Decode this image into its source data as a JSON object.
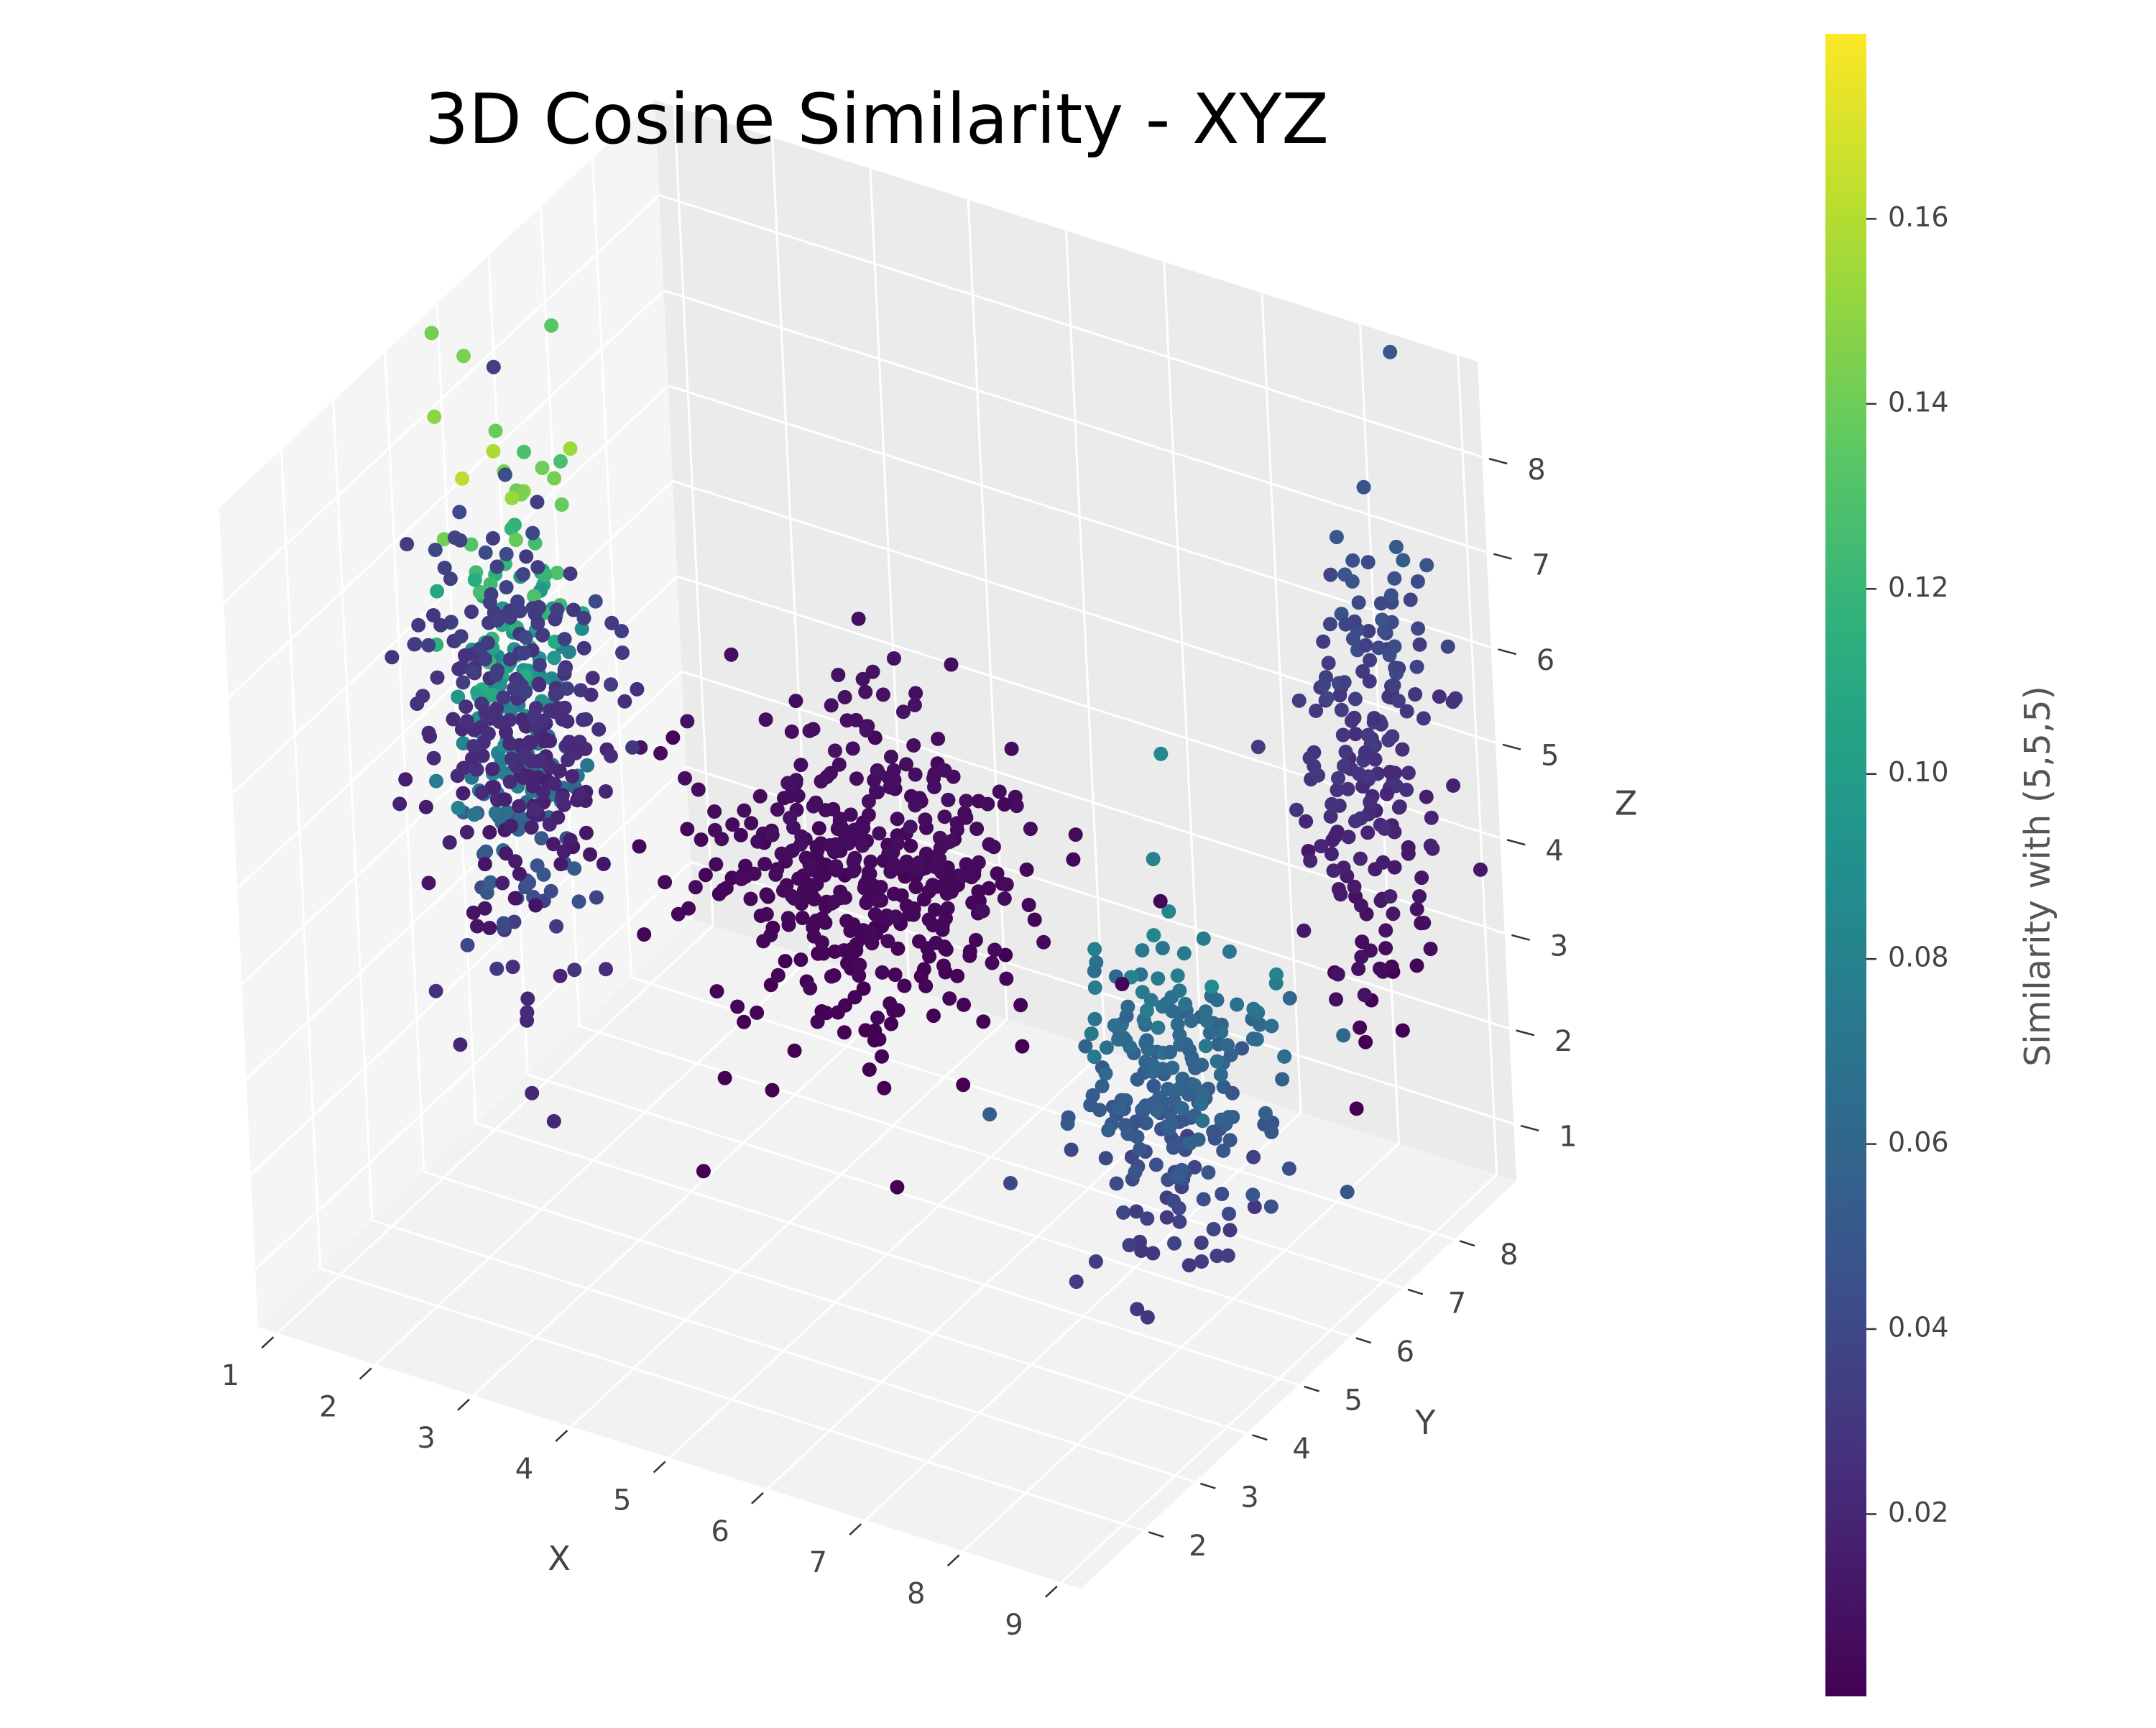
{
  "chart_data": {
    "type": "scatter",
    "title": "3D Cosine Similarity - XYZ",
    "xlabel": "X",
    "ylabel": "Y",
    "zlabel": "Z",
    "x_ticks": [
      "1",
      "2",
      "3",
      "4",
      "5",
      "6",
      "7",
      "8",
      "9"
    ],
    "y_ticks": [
      "2",
      "3",
      "4",
      "5",
      "6",
      "7",
      "8"
    ],
    "z_ticks": [
      "1",
      "2",
      "3",
      "4",
      "5",
      "6",
      "7",
      "8"
    ],
    "xlim": [
      0.8,
      9.2
    ],
    "ylim": [
      0.8,
      9.2
    ],
    "zlim": [
      0.4,
      9.0
    ],
    "grid": true,
    "colormap": "viridis",
    "colorbar": {
      "label": "Similarity with (5,5,5)",
      "ticks": [
        "0.02",
        "0.04",
        "0.06",
        "0.08",
        "0.10",
        "0.12",
        "0.14",
        "0.16"
      ],
      "range": [
        0.0003,
        0.18
      ]
    },
    "clusters": [
      {
        "center": [
          5,
          5,
          4.4
        ],
        "spread": [
          0.75,
          0.75,
          0.7
        ],
        "count": 420,
        "similarity_range": [
          0.0003,
          0.01
        ]
      },
      {
        "center": [
          2.6,
          3.0,
          6.3
        ],
        "spread": [
          0.45,
          0.45,
          0.9
        ],
        "count": 240,
        "similarity_range": [
          0.01,
          0.045
        ]
      },
      {
        "center": [
          7.1,
          6.8,
          1.9
        ],
        "spread": [
          0.45,
          0.45,
          0.8
        ],
        "count": 240,
        "similarity_range": [
          0.03,
          0.09
        ]
      },
      {
        "center": [
          1.4,
          5.0,
          5.0
        ],
        "spread": [
          0.25,
          0.45,
          1.5
        ],
        "count": 220,
        "similarity_range": [
          0.02,
          0.18
        ]
      },
      {
        "center": [
          8.4,
          8.3,
          5.0
        ],
        "spread": [
          0.25,
          0.5,
          1.3
        ],
        "count": 200,
        "similarity_range": [
          0.0003,
          0.06
        ]
      }
    ]
  }
}
